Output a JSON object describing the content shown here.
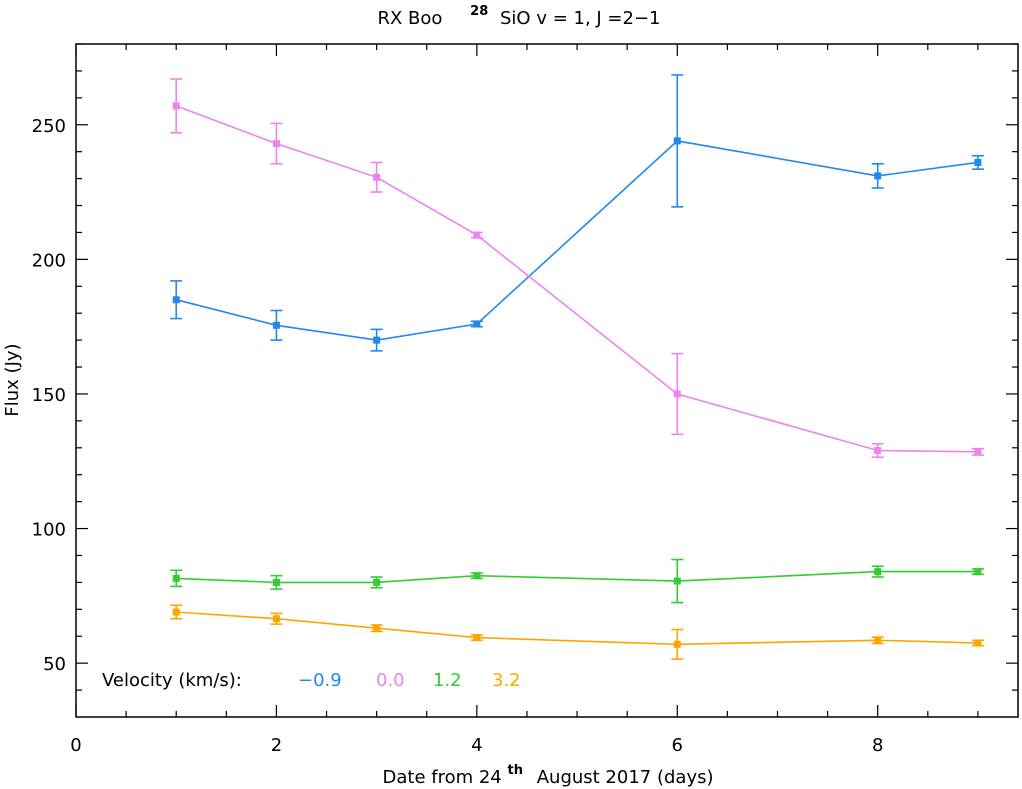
{
  "chart_data": {
    "type": "line",
    "title": {
      "prefix": "RX Boo",
      "isotope_superscript": "28",
      "rest": "SiO v = 1, J =2−1"
    },
    "xlabel": {
      "prefix": "Date from 24",
      "superscript": "th",
      "rest": "August 2017 (days)"
    },
    "ylabel": "Flux (Jy)",
    "xlim": [
      0,
      9.4
    ],
    "ylim": [
      30,
      280
    ],
    "x_ticks": [
      0,
      2,
      4,
      6,
      8
    ],
    "x_tick_labels": [
      "0",
      "2",
      "4",
      "6",
      "8"
    ],
    "y_ticks": [
      50,
      100,
      150,
      200,
      250
    ],
    "y_tick_labels": [
      "50",
      "100",
      "150",
      "200",
      "250"
    ],
    "grid": false,
    "legend": {
      "label": "Velocity (km/s):",
      "placement": "bottom-left"
    },
    "series": [
      {
        "name": "−0.9",
        "color": "#2288ee",
        "x": [
          1,
          2,
          3,
          4,
          6,
          8,
          9
        ],
        "y": [
          185,
          175.5,
          170,
          176,
          244,
          231,
          236
        ],
        "err": [
          7,
          5.5,
          4,
          1,
          24.5,
          4.5,
          2.5
        ]
      },
      {
        "name": "0.0",
        "color": "#ee82ee",
        "x": [
          1,
          2,
          3,
          4,
          6,
          8,
          9
        ],
        "y": [
          257,
          243,
          230.5,
          209,
          150,
          129,
          128.5
        ],
        "err": [
          10,
          7.5,
          5.5,
          1,
          15,
          2.5,
          1.2
        ]
      },
      {
        "name": "1.2",
        "color": "#33cc33",
        "x": [
          1,
          2,
          3,
          4,
          6,
          8,
          9
        ],
        "y": [
          81.5,
          80,
          80,
          82.5,
          80.5,
          84,
          84
        ],
        "err": [
          3,
          2.5,
          2,
          1,
          8,
          2,
          1
        ]
      },
      {
        "name": "3.2",
        "color": "#ffa500",
        "x": [
          1,
          2,
          3,
          4,
          6,
          8,
          9
        ],
        "y": [
          69,
          66.5,
          63,
          59.5,
          57,
          58.5,
          57.5
        ],
        "err": [
          2.5,
          2,
          1.2,
          1,
          5.5,
          1.2,
          1
        ]
      }
    ]
  }
}
